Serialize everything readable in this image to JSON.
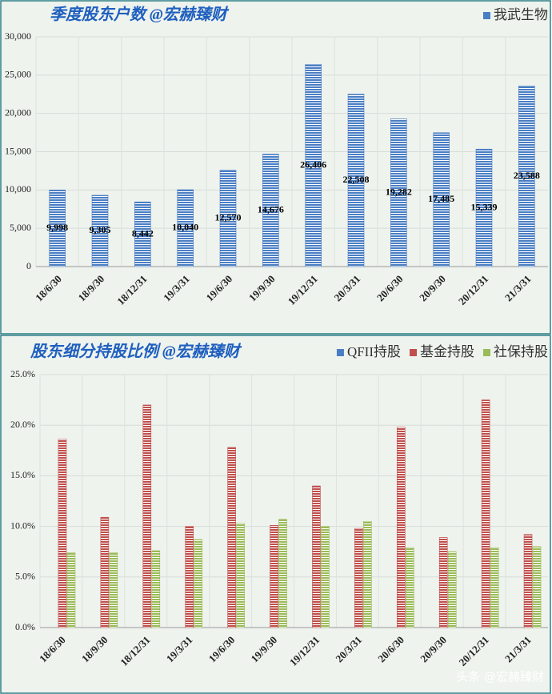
{
  "chart_data": [
    {
      "type": "bar",
      "title": "季度股东户数 @宏赫臻财",
      "categories": [
        "18/6/30",
        "18/9/30",
        "18/12/31",
        "19/3/31",
        "19/6/30",
        "19/9/30",
        "19/12/31",
        "20/3/31",
        "20/6/30",
        "20/9/30",
        "20/12/31",
        "21/3/31"
      ],
      "series": [
        {
          "name": "我武生物",
          "color": "#4a7ec4",
          "values": [
            9998,
            9305,
            8442,
            10040,
            12570,
            14676,
            26406,
            22508,
            19282,
            17485,
            15339,
            23588
          ],
          "value_labels": [
            "9,998",
            "9,305",
            "8,442",
            "10,040",
            "12,570",
            "14,676",
            "26,406",
            "22,508",
            "19,282",
            "17,485",
            "15,339",
            "23,588"
          ]
        }
      ],
      "ylim": [
        0,
        30000
      ],
      "yticks": [
        0,
        {
          "value": 5000,
          "label": "5,000"
        },
        {
          "value": 10000,
          "label": "10,000"
        },
        {
          "value": 15000,
          "label": "15,000"
        },
        {
          "value": 20000,
          "label": "20,000"
        },
        {
          "value": 25000,
          "label": "25,000"
        },
        {
          "value": 30000,
          "label": "30,000"
        }
      ],
      "grid": true,
      "legend": "top-right"
    },
    {
      "type": "bar",
      "title": "股东细分持股比例 @宏赫臻财",
      "categories": [
        "18/6/30",
        "18/9/30",
        "18/12/31",
        "19/3/31",
        "19/6/30",
        "19/9/30",
        "19/12/31",
        "20/3/31",
        "20/6/30",
        "20/9/30",
        "20/12/31",
        "21/3/31"
      ],
      "series": [
        {
          "name": "QFII持股",
          "color": "#4a7ec4",
          "values": [
            0,
            0,
            0,
            0,
            0,
            0,
            0,
            0,
            0,
            0,
            0,
            0
          ]
        },
        {
          "name": "基金持股",
          "color": "#c0504d",
          "values": [
            18.6,
            10.9,
            22.0,
            10.0,
            17.8,
            10.1,
            14.0,
            9.8,
            19.8,
            8.9,
            22.5,
            9.2
          ]
        },
        {
          "name": "社保持股",
          "color": "#9bbb59",
          "values": [
            7.4,
            7.4,
            7.6,
            8.7,
            10.3,
            10.7,
            10.0,
            10.5,
            7.9,
            7.5,
            7.9,
            8.0
          ]
        }
      ],
      "ylim": [
        0,
        25
      ],
      "yticks": [
        {
          "value": 0,
          "label": "0.0%"
        },
        {
          "value": 5,
          "label": "5.0%"
        },
        {
          "value": 10,
          "label": "10.0%"
        },
        {
          "value": 15,
          "label": "15.0%"
        },
        {
          "value": 20,
          "label": "20.0%"
        },
        {
          "value": 25,
          "label": "25.0%"
        }
      ],
      "grid": true,
      "legend": "top-right"
    }
  ],
  "watermark": "头条 @宏赫臻财"
}
